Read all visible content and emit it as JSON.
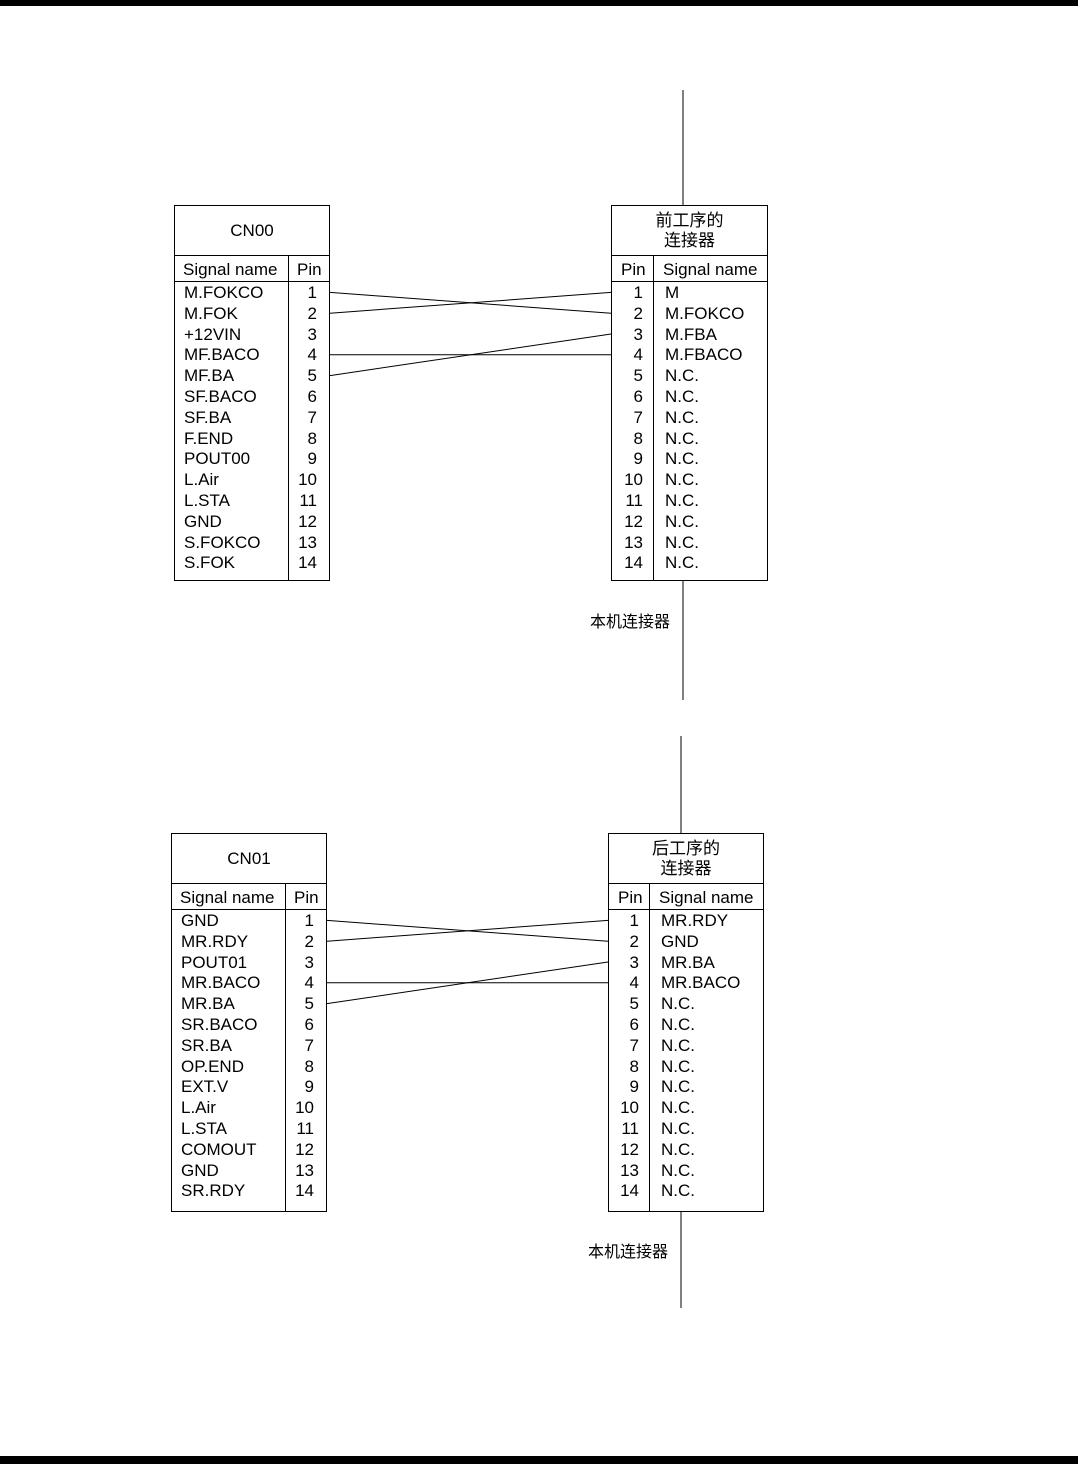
{
  "diagrams": [
    {
      "left": {
        "title": "CN00",
        "col_signal": "Signal name",
        "col_pin": "Pin",
        "rows": [
          {
            "signal": "M.FOKCO",
            "pin": "1"
          },
          {
            "signal": "M.FOK",
            "pin": "2"
          },
          {
            "signal": "+12VIN",
            "pin": "3"
          },
          {
            "signal": "MF.BACO",
            "pin": "4"
          },
          {
            "signal": "MF.BA",
            "pin": "5"
          },
          {
            "signal": "SF.BACO",
            "pin": "6"
          },
          {
            "signal": "SF.BA",
            "pin": "7"
          },
          {
            "signal": "F.END",
            "pin": "8"
          },
          {
            "signal": "POUT00",
            "pin": "9"
          },
          {
            "signal": "L.Air",
            "pin": "10"
          },
          {
            "signal": "L.STA",
            "pin": "11"
          },
          {
            "signal": "GND",
            "pin": "12"
          },
          {
            "signal": "S.FOKCO",
            "pin": "13"
          },
          {
            "signal": "S.FOK",
            "pin": "14"
          }
        ]
      },
      "right": {
        "title": "前工序的\n连接器",
        "col_pin": "Pin",
        "col_signal": "Signal name",
        "rows": [
          {
            "pin": "1",
            "signal": "M"
          },
          {
            "pin": "2",
            "signal": "M.FOKCO"
          },
          {
            "pin": "3",
            "signal": "M.FBA"
          },
          {
            "pin": "4",
            "signal": "M.FBACO"
          },
          {
            "pin": "5",
            "signal": "N.C."
          },
          {
            "pin": "6",
            "signal": "N.C."
          },
          {
            "pin": "7",
            "signal": "N.C."
          },
          {
            "pin": "8",
            "signal": "N.C."
          },
          {
            "pin": "9",
            "signal": "N.C."
          },
          {
            "pin": "10",
            "signal": "N.C."
          },
          {
            "pin": "11",
            "signal": "N.C."
          },
          {
            "pin": "12",
            "signal": "N.C."
          },
          {
            "pin": "13",
            "signal": "N.C."
          },
          {
            "pin": "14",
            "signal": "N.C."
          }
        ]
      },
      "connector_caption": "本机连接器",
      "wires": [
        [
          1,
          2
        ],
        [
          2,
          1
        ],
        [
          4,
          4
        ],
        [
          5,
          3
        ]
      ]
    },
    {
      "left": {
        "title": "CN01",
        "col_signal": "Signal name",
        "col_pin": "Pin",
        "rows": [
          {
            "signal": "GND",
            "pin": "1"
          },
          {
            "signal": "MR.RDY",
            "pin": "2"
          },
          {
            "signal": "POUT01",
            "pin": "3"
          },
          {
            "signal": "MR.BACO",
            "pin": "4"
          },
          {
            "signal": "MR.BA",
            "pin": "5"
          },
          {
            "signal": "SR.BACO",
            "pin": "6"
          },
          {
            "signal": "SR.BA",
            "pin": "7"
          },
          {
            "signal": "OP.END",
            "pin": "8"
          },
          {
            "signal": "EXT.V",
            "pin": "9"
          },
          {
            "signal": "L.Air",
            "pin": "10"
          },
          {
            "signal": "L.STA",
            "pin": "11"
          },
          {
            "signal": "COMOUT",
            "pin": "12"
          },
          {
            "signal": "GND",
            "pin": "13"
          },
          {
            "signal": "SR.RDY",
            "pin": "14"
          }
        ]
      },
      "right": {
        "title": "后工序的\n连接器",
        "col_pin": "Pin",
        "col_signal": "Signal name",
        "rows": [
          {
            "pin": "1",
            "signal": "MR.RDY"
          },
          {
            "pin": "2",
            "signal": "GND"
          },
          {
            "pin": "3",
            "signal": "MR.BA"
          },
          {
            "pin": "4",
            "signal": "MR.BACO"
          },
          {
            "pin": "5",
            "signal": "N.C."
          },
          {
            "pin": "6",
            "signal": "N.C."
          },
          {
            "pin": "7",
            "signal": "N.C."
          },
          {
            "pin": "8",
            "signal": "N.C."
          },
          {
            "pin": "9",
            "signal": "N.C."
          },
          {
            "pin": "10",
            "signal": "N.C."
          },
          {
            "pin": "11",
            "signal": "N.C."
          },
          {
            "pin": "12",
            "signal": "N.C."
          },
          {
            "pin": "13",
            "signal": "N.C."
          },
          {
            "pin": "14",
            "signal": "N.C."
          }
        ]
      },
      "connector_caption": "本机连接器",
      "wires": [
        [
          1,
          2
        ],
        [
          2,
          1
        ],
        [
          4,
          4
        ],
        [
          5,
          3
        ]
      ]
    }
  ]
}
